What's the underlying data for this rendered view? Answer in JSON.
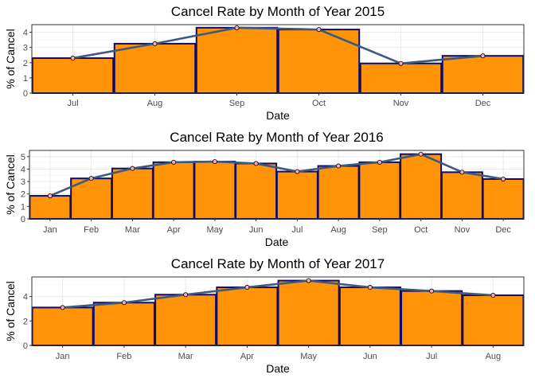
{
  "chart_data": [
    {
      "type": "bar",
      "overlay": "line",
      "title": "Cancel Rate by Month of Year 2015",
      "xlabel": "Date",
      "ylabel": "% of Cancel",
      "categories": [
        "Jul",
        "Aug",
        "Sep",
        "Oct",
        "Nov",
        "Dec"
      ],
      "values": [
        2.3,
        3.25,
        4.3,
        4.18,
        1.95,
        2.45
      ],
      "ylim": [
        0,
        4.5
      ],
      "yticks": [
        0,
        1,
        2,
        3,
        4
      ],
      "grid": true
    },
    {
      "type": "bar",
      "overlay": "line",
      "title": "Cancel Rate by Month of Year 2016",
      "xlabel": "Date",
      "ylabel": "% of Cancel",
      "categories": [
        "Jan",
        "Feb",
        "Mar",
        "Apr",
        "May",
        "Jun",
        "Jul",
        "Aug",
        "Sep",
        "Oct",
        "Nov",
        "Dec"
      ],
      "values": [
        1.85,
        3.25,
        4.05,
        4.55,
        4.6,
        4.45,
        3.8,
        4.25,
        4.55,
        5.2,
        3.75,
        3.2
      ],
      "ylim": [
        0,
        5.5
      ],
      "yticks": [
        0,
        1,
        2,
        3,
        4,
        5
      ],
      "grid": true
    },
    {
      "type": "bar",
      "overlay": "line",
      "title": "Cancel Rate by Month of Year 2017",
      "xlabel": "Date",
      "ylabel": "% of Cancel",
      "categories": [
        "Jan",
        "Feb",
        "Mar",
        "Apr",
        "May",
        "Jun",
        "Jul",
        "Aug"
      ],
      "values": [
        3.1,
        3.5,
        4.15,
        4.75,
        5.3,
        4.75,
        4.45,
        4.1
      ],
      "ylim": [
        0,
        5.6
      ],
      "yticks": [
        0,
        2,
        4
      ],
      "grid": true
    }
  ],
  "colors": {
    "bar_fill": "#ff9408",
    "bar_border": "#0e0b6b",
    "line": "#3c5a80",
    "point_fill": "#f9a9c4",
    "grid_major": "#ebebeb",
    "grid_minor": "#f4f4f4",
    "panel_border": "#333333"
  }
}
